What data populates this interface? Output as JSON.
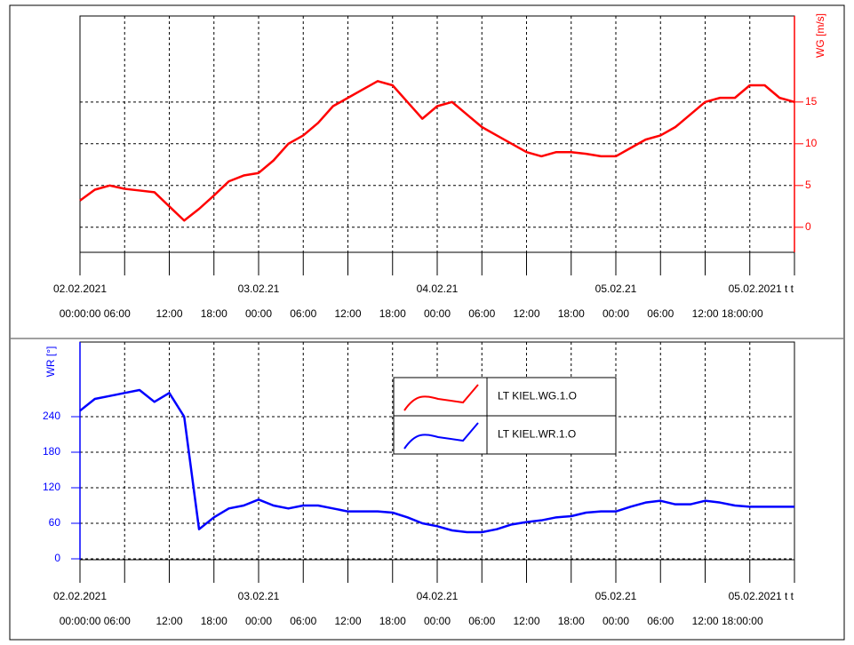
{
  "chart_data": [
    {
      "type": "line",
      "y_label": "WG [m/s]",
      "axis_side": "right",
      "axis_color": "#ff0000",
      "x": [
        0,
        2,
        4,
        6,
        8,
        10,
        12,
        14,
        16,
        18,
        20,
        22,
        24,
        26,
        28,
        30,
        32,
        34,
        36,
        38,
        40,
        42,
        44,
        46,
        48,
        50,
        52,
        54,
        56,
        58,
        60,
        62,
        64,
        66,
        68,
        70,
        72,
        74,
        76,
        78,
        80,
        82,
        84,
        86,
        88,
        90,
        92,
        94,
        96
      ],
      "series": [
        {
          "name": "LT KIEL.WG.1.O",
          "color": "#ff0000",
          "values": [
            3.2,
            4.5,
            5.0,
            4.6,
            4.4,
            4.2,
            2.5,
            0.8,
            2.2,
            3.8,
            5.5,
            6.2,
            6.5,
            8,
            10,
            11,
            12.5,
            14.5,
            15.5,
            16.5,
            17.5,
            17,
            15,
            13,
            14.5,
            15,
            13.5,
            12,
            11,
            10,
            9,
            8.5,
            9,
            9,
            8.8,
            8.5,
            8.5,
            9.5,
            10.5,
            11,
            12,
            13.5,
            15,
            15.5,
            15.5,
            17,
            17,
            15.5,
            15
          ]
        }
      ],
      "xlim": [
        0,
        96
      ],
      "xticks": [
        0,
        6,
        12,
        18,
        24,
        30,
        36,
        42,
        48,
        54,
        60,
        66,
        72,
        78,
        84,
        90,
        96
      ],
      "date_labels": [
        {
          "value": 0,
          "label": "02.02.2021"
        },
        {
          "value": 24,
          "label": "03.02.21"
        },
        {
          "value": 48,
          "label": "04.02.21"
        },
        {
          "value": 72,
          "label": "05.02.21"
        },
        {
          "value": 91.5,
          "label": "05.02.2021 t t"
        }
      ],
      "time_labels": [
        {
          "value": 2,
          "label": "00:00:00 06:00"
        },
        {
          "value": 12,
          "label": "12:00"
        },
        {
          "value": 18,
          "label": "18:00"
        },
        {
          "value": 24,
          "label": "00:00"
        },
        {
          "value": 30,
          "label": "06:00"
        },
        {
          "value": 36,
          "label": "12:00"
        },
        {
          "value": 42,
          "label": "18:00"
        },
        {
          "value": 48,
          "label": "00:00"
        },
        {
          "value": 54,
          "label": "06:00"
        },
        {
          "value": 60,
          "label": "12:00"
        },
        {
          "value": 66,
          "label": "18:00"
        },
        {
          "value": 72,
          "label": "00:00"
        },
        {
          "value": 78,
          "label": "06:00"
        },
        {
          "value": 87,
          "label": "12:00 18:00:00"
        }
      ],
      "ylim": [
        -3,
        25.3
      ],
      "yticks": [
        0,
        5,
        10,
        15
      ],
      "grid": true
    },
    {
      "type": "line",
      "y_label": "WR [°]",
      "axis_side": "left",
      "axis_color": "#0000ff",
      "legend": "top-center",
      "x": [
        0,
        2,
        4,
        6,
        8,
        10,
        12,
        14,
        16,
        18,
        20,
        22,
        24,
        26,
        28,
        30,
        32,
        34,
        36,
        38,
        40,
        42,
        44,
        46,
        48,
        50,
        52,
        54,
        56,
        58,
        60,
        62,
        64,
        66,
        68,
        70,
        72,
        74,
        76,
        78,
        80,
        82,
        84,
        86,
        88,
        90,
        92,
        94,
        96
      ],
      "series": [
        {
          "name": "LT KIEL.WR.1.O",
          "color": "#0000ff",
          "values": [
            250,
            270,
            275,
            280,
            285,
            265,
            280,
            240,
            50,
            70,
            85,
            90,
            100,
            90,
            85,
            90,
            90,
            85,
            80,
            80,
            80,
            78,
            70,
            60,
            55,
            48,
            45,
            45,
            50,
            58,
            62,
            65,
            70,
            72,
            78,
            80,
            80,
            88,
            95,
            98,
            92,
            92,
            98,
            95,
            90,
            88,
            88,
            88,
            88
          ]
        }
      ],
      "xlim": [
        0,
        96
      ],
      "xticks": [
        0,
        6,
        12,
        18,
        24,
        30,
        36,
        42,
        48,
        54,
        60,
        66,
        72,
        78,
        84,
        90,
        96
      ],
      "date_labels": [
        {
          "value": 0,
          "label": "02.02.2021"
        },
        {
          "value": 24,
          "label": "03.02.21"
        },
        {
          "value": 48,
          "label": "04.02.21"
        },
        {
          "value": 72,
          "label": "05.02.21"
        },
        {
          "value": 91.5,
          "label": "05.02.2021 t t"
        }
      ],
      "time_labels": [
        {
          "value": 2,
          "label": "00:00:00 06:00"
        },
        {
          "value": 12,
          "label": "12:00"
        },
        {
          "value": 18,
          "label": "18:00"
        },
        {
          "value": 24,
          "label": "00:00"
        },
        {
          "value": 30,
          "label": "06:00"
        },
        {
          "value": 36,
          "label": "12:00"
        },
        {
          "value": 42,
          "label": "18:00"
        },
        {
          "value": 48,
          "label": "00:00"
        },
        {
          "value": 54,
          "label": "06:00"
        },
        {
          "value": 60,
          "label": "12:00"
        },
        {
          "value": 66,
          "label": "18:00"
        },
        {
          "value": 72,
          "label": "00:00"
        },
        {
          "value": 78,
          "label": "06:00"
        },
        {
          "value": 87,
          "label": "12:00 18:00:00"
        }
      ],
      "ylim": [
        -1.5,
        366
      ],
      "yticks": [
        0,
        60,
        120,
        180,
        240
      ],
      "grid": true
    }
  ]
}
